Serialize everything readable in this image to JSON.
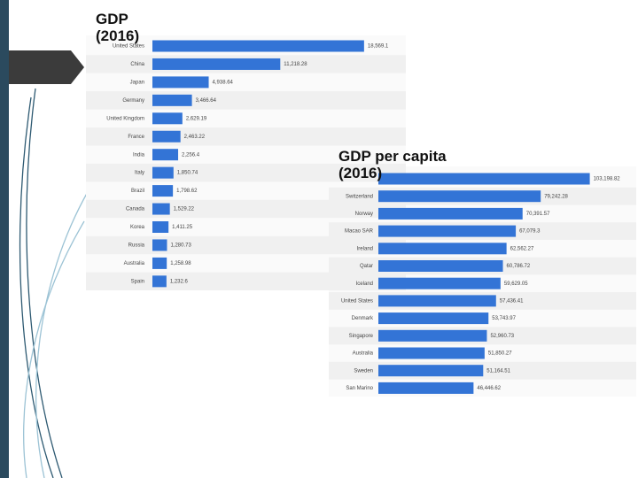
{
  "chart_data": [
    {
      "type": "bar",
      "title": "GDP (2016)",
      "categories": [
        "United States",
        "China",
        "Japan",
        "Germany",
        "United Kingdom",
        "France",
        "India",
        "Italy",
        "Brazil",
        "Canada",
        "Korea",
        "Russia",
        "Australia",
        "Spain"
      ],
      "values": [
        18569.1,
        11218.28,
        4938.64,
        3466.64,
        2629.19,
        2463.22,
        2256.4,
        1850.74,
        1798.62,
        1529.22,
        1411.25,
        1280.73,
        1258.98,
        1232.6
      ],
      "value_labels": [
        "18,569.1",
        "11,218.28",
        "4,938.64",
        "3,466.64",
        "2,629.19",
        "2,463.22",
        "2,256.4",
        "1,850.74",
        "1,798.62",
        "1,529.22",
        "1,411.25",
        "1,280.73",
        "1,258.98",
        "1,232.6"
      ],
      "color": "#3374d6",
      "xlim": [
        0,
        22000
      ]
    },
    {
      "type": "bar",
      "title": "GDP per capita (2016)",
      "categories": [
        null,
        "Switzerland",
        "Norway",
        "Macao SAR",
        "Ireland",
        "Qatar",
        "Iceland",
        "United States",
        "Denmark",
        "Singapore",
        "Australia",
        "Sweden",
        "San Marino"
      ],
      "values": [
        103198.82,
        79242.28,
        70391.57,
        67079.3,
        62562.27,
        60786.72,
        59629.05,
        57436.41,
        53743.97,
        52960.73,
        51850.27,
        51164.51,
        46446.62
      ],
      "value_labels": [
        "103,198.82",
        "79,242.28",
        "70,391.57",
        "67,079.3",
        "62,562.27",
        "60,786.72",
        "59,629.05",
        "57,436.41",
        "53,743.97",
        "52,960.73",
        "51,850.27",
        "51,164.51",
        "46,446.62"
      ],
      "color": "#3374d6",
      "xlim": [
        0,
        125000
      ]
    }
  ]
}
